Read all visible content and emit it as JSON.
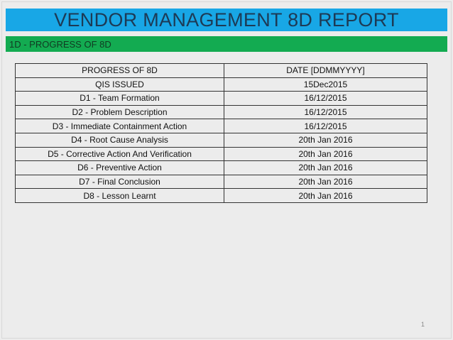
{
  "title": "VENDOR MANAGEMENT 8D REPORT",
  "section": "1D  - PROGRESS OF 8D",
  "colors": {
    "title_bar": "#18a7e6",
    "section_bar": "#13ab51"
  },
  "table": {
    "headers": [
      "PROGRESS OF 8D",
      "DATE [DDMMYYYY]"
    ],
    "rows": [
      [
        "QIS ISSUED",
        "15Dec2015"
      ],
      [
        "D1 - Team Formation",
        "16/12/2015"
      ],
      [
        "D2 - Problem Description",
        "16/12/2015"
      ],
      [
        "D3 - Immediate Containment Action",
        "16/12/2015"
      ],
      [
        "D4 - Root Cause Analysis",
        "20th Jan 2016"
      ],
      [
        "D5 - Corrective Action And Verification",
        "20th Jan 2016"
      ],
      [
        "D6 - Preventive Action",
        "20th Jan 2016"
      ],
      [
        "D7 - Final Conclusion",
        "20th Jan 2016"
      ],
      [
        "D8 - Lesson Learnt",
        "20th Jan 2016"
      ]
    ]
  },
  "page_number": "1"
}
